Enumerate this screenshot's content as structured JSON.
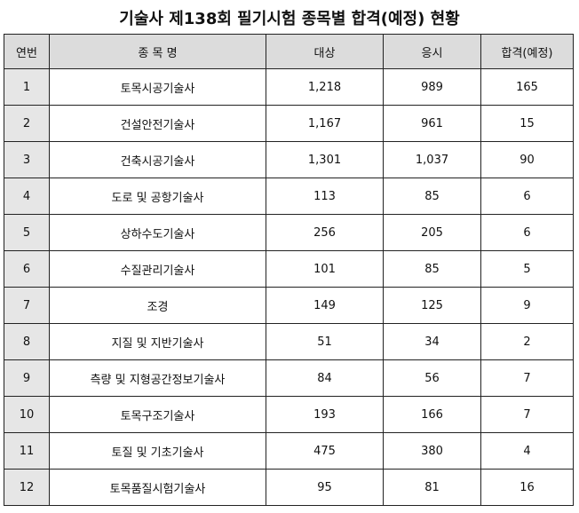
{
  "title": "기술사 제138회 필기시험 종목별 합격(예정) 현황",
  "table": {
    "headers": [
      "연번",
      "종 목 명",
      "대상",
      "응시",
      "합격(예정)"
    ],
    "rows": [
      [
        "1",
        "토목시공기술사",
        "1,218",
        "989",
        "165"
      ],
      [
        "2",
        "건설안전기술사",
        "1,167",
        "961",
        "15"
      ],
      [
        "3",
        "건축시공기술사",
        "1,301",
        "1,037",
        "90"
      ],
      [
        "4",
        "도로 및 공항기술사",
        "113",
        "85",
        "6"
      ],
      [
        "5",
        "상하수도기술사",
        "256",
        "205",
        "6"
      ],
      [
        "6",
        "수질관리기술사",
        "101",
        "85",
        "5"
      ],
      [
        "7",
        "조경",
        "149",
        "125",
        "9"
      ],
      [
        "8",
        "지질 및 지반기술사",
        "51",
        "34",
        "2"
      ],
      [
        "9",
        "측량 및 지형공간정보기술사",
        "84",
        "56",
        "7"
      ],
      [
        "10",
        "토목구조기술사",
        "193",
        "166",
        "7"
      ],
      [
        "11",
        "토질 및 기초기술사",
        "475",
        "380",
        "4"
      ],
      [
        "12",
        "토목품질시험기술사",
        "95",
        "81",
        "16"
      ]
    ]
  }
}
